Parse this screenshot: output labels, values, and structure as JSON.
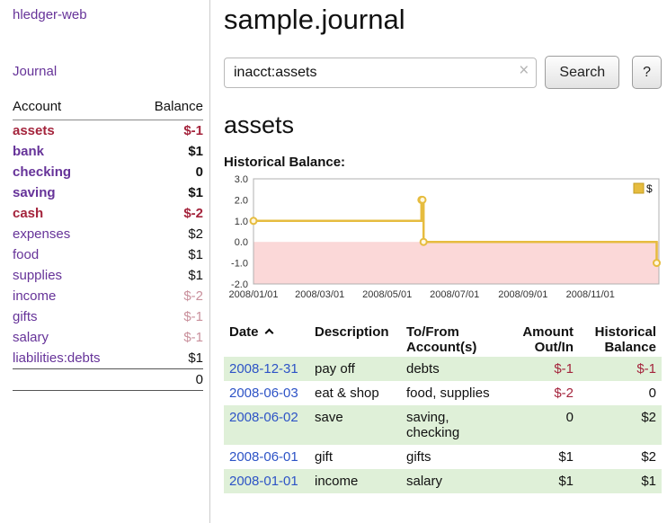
{
  "colors": {
    "purple": "#663399",
    "link_blue": "#2d53c6",
    "neg_strong": "#a4243c",
    "neg_soft": "#c9909c",
    "row_green": "#dff0d8",
    "chart_gold": "#e6bc3f",
    "chart_gold_dark": "#c39b21",
    "chart_pink": "#fbd8d8"
  },
  "sidebar": {
    "brand": "hledger-web",
    "journal_link": "Journal",
    "header": {
      "account": "Account",
      "balance": "Balance"
    },
    "accounts": [
      {
        "name": "assets",
        "indent": 1,
        "bold": true,
        "name_style": "neg",
        "balance": "$-1",
        "bal_style": "neg"
      },
      {
        "name": "bank",
        "indent": 2,
        "bold": true,
        "name_style": "purple",
        "balance": "$1",
        "bal_style": "normal"
      },
      {
        "name": "checking",
        "indent": 3,
        "bold": true,
        "name_style": "purple",
        "balance": "0",
        "bal_style": "normal"
      },
      {
        "name": "saving",
        "indent": 3,
        "bold": true,
        "name_style": "purple",
        "balance": "$1",
        "bal_style": "normal"
      },
      {
        "name": "cash",
        "indent": 2,
        "bold": true,
        "name_style": "neg",
        "balance": "$-2",
        "bal_style": "neg"
      },
      {
        "name": "expenses",
        "indent": 1,
        "bold": false,
        "name_style": "purple",
        "balance": "$2",
        "bal_style": "normal"
      },
      {
        "name": "food",
        "indent": 2,
        "bold": false,
        "name_style": "purple",
        "balance": "$1",
        "bal_style": "normal"
      },
      {
        "name": "supplies",
        "indent": 2,
        "bold": false,
        "name_style": "purple",
        "balance": "$1",
        "bal_style": "normal"
      },
      {
        "name": "income",
        "indent": 1,
        "bold": false,
        "name_style": "purple",
        "balance": "$-2",
        "bal_style": "negsoft"
      },
      {
        "name": "gifts",
        "indent": 2,
        "bold": false,
        "name_style": "purple",
        "balance": "$-1",
        "bal_style": "negsoft"
      },
      {
        "name": "salary",
        "indent": 2,
        "bold": false,
        "name_style": "purple",
        "balance": "$-1",
        "bal_style": "negsoft"
      },
      {
        "name": "liabilities:debts",
        "indent": 0,
        "bold": false,
        "name_style": "purple",
        "balance": "$1",
        "bal_style": "normal"
      }
    ],
    "total": "0"
  },
  "main": {
    "title": "sample.journal",
    "search": {
      "value": "inacct:assets",
      "clear": "×",
      "button_label": "Search",
      "help_label": "?"
    },
    "account_heading": "assets",
    "section_label": "Historical Balance:"
  },
  "chart_data": {
    "type": "line",
    "style": "step-after",
    "title": "Historical Balance",
    "ylim": [
      -2,
      3
    ],
    "y_ticks": [
      3.0,
      2.0,
      1.0,
      0.0,
      -1.0,
      -2.0
    ],
    "x_ticks": [
      "2008/01/01",
      "2008/03/01",
      "2008/05/01",
      "2008/07/01",
      "2008/09/01",
      "2008/11/01"
    ],
    "x_domain": [
      "2008-01-01",
      "2008-12-31"
    ],
    "legend": {
      "label": "$",
      "position": "top-right"
    },
    "negative_region_shaded": true,
    "series": [
      {
        "name": "$",
        "points": [
          {
            "date": "2008-01-01",
            "value": 1
          },
          {
            "date": "2008-06-01",
            "value": 2
          },
          {
            "date": "2008-06-02",
            "value": 2
          },
          {
            "date": "2008-06-03",
            "value": 0
          },
          {
            "date": "2008-12-31",
            "value": -1
          }
        ]
      }
    ]
  },
  "register": {
    "headers": {
      "date": "Date",
      "description": "Description",
      "account": "To/From Account(s)",
      "amount": "Amount Out/In",
      "balance": "Historical Balance"
    },
    "sort_icon": "chevron-up",
    "rows": [
      {
        "date": "2008-12-31",
        "description": "pay off",
        "account": "debts",
        "amount": "$-1",
        "amount_neg": true,
        "balance": "$-1",
        "balance_neg": true,
        "shaded": true
      },
      {
        "date": "2008-06-03",
        "description": "eat & shop",
        "account": "food, supplies",
        "amount": "$-2",
        "amount_neg": true,
        "balance": "0",
        "balance_neg": false,
        "shaded": false
      },
      {
        "date": "2008-06-02",
        "description": "save",
        "account": "saving, checking",
        "amount": "0",
        "amount_neg": false,
        "balance": "$2",
        "balance_neg": false,
        "shaded": true
      },
      {
        "date": "2008-06-01",
        "description": "gift",
        "account": "gifts",
        "amount": "$1",
        "amount_neg": false,
        "balance": "$2",
        "balance_neg": false,
        "shaded": false
      },
      {
        "date": "2008-01-01",
        "description": "income",
        "account": "salary",
        "amount": "$1",
        "amount_neg": false,
        "balance": "$1",
        "balance_neg": false,
        "shaded": true
      }
    ]
  }
}
